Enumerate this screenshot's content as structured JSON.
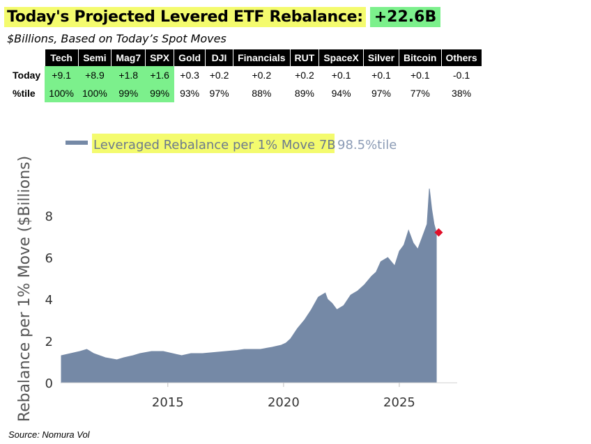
{
  "header": {
    "title": "Today's Projected Levered ETF Rebalance:",
    "total": "+22.6B",
    "subtitle": "$Billions, Based on Today’s Spot Moves"
  },
  "table": {
    "columns": [
      "Tech",
      "Semi",
      "Mag7",
      "SPX",
      "Gold",
      "DJI",
      "Financials",
      "RUT",
      "SpaceX",
      "Silver",
      "Bitcoin",
      "Others"
    ],
    "rows": [
      {
        "label": "Today",
        "values": [
          "+9.1",
          "+8.9",
          "+1.8",
          "+1.6",
          "+0.3",
          "+0.2",
          "+0.2",
          "+0.2",
          "+0.1",
          "+0.1",
          "+0.1",
          "-0.1"
        ]
      },
      {
        "label": "%tile",
        "values": [
          "100%",
          "100%",
          "99%",
          "99%",
          "93%",
          "97%",
          "88%",
          "89%",
          "94%",
          "97%",
          "77%",
          "38%"
        ]
      }
    ],
    "highlight_columns": 4,
    "highlight_color": "#7cf08c",
    "title_highlight_color": "#f4fb6e"
  },
  "chart_data": {
    "type": "area",
    "series": [
      {
        "name": "Leveraged Rebalance per 1% Move 7B",
        "name_suffix": "98.5%tile",
        "color": "#7589a6",
        "x": [
          2010.4,
          2010.8,
          2011.2,
          2011.5,
          2011.8,
          2012.3,
          2012.8,
          2013.1,
          2013.5,
          2013.8,
          2014.3,
          2014.8,
          2015.2,
          2015.6,
          2016.0,
          2016.5,
          2017.0,
          2017.5,
          2018.0,
          2018.3,
          2018.8,
          2019.0,
          2019.5,
          2019.9,
          2020.1,
          2020.3,
          2020.6,
          2020.9,
          2021.2,
          2021.5,
          2021.8,
          2021.9,
          2022.1,
          2022.3,
          2022.6,
          2022.9,
          2023.2,
          2023.5,
          2023.8,
          2024.0,
          2024.2,
          2024.5,
          2024.8,
          2025.0,
          2025.2,
          2025.4,
          2025.6,
          2025.8,
          2026.0,
          2026.2,
          2026.3,
          2026.4,
          2026.5,
          2026.6
        ],
        "values": [
          1.3,
          1.4,
          1.5,
          1.6,
          1.4,
          1.2,
          1.1,
          1.2,
          1.3,
          1.4,
          1.5,
          1.5,
          1.4,
          1.3,
          1.4,
          1.4,
          1.45,
          1.5,
          1.55,
          1.6,
          1.6,
          1.6,
          1.7,
          1.8,
          1.9,
          2.1,
          2.6,
          3.0,
          3.5,
          4.1,
          4.3,
          4.0,
          3.8,
          3.5,
          3.7,
          4.2,
          4.4,
          4.7,
          5.1,
          5.3,
          5.8,
          6.0,
          5.6,
          6.3,
          6.6,
          7.3,
          6.7,
          6.4,
          7.0,
          7.6,
          9.3,
          8.3,
          7.6,
          7.2
        ]
      }
    ],
    "marker": {
      "x": 2026.7,
      "y": 7.2,
      "color": "#e0102a"
    },
    "xlim": [
      2010.4,
      2027.5
    ],
    "ylim": [
      0,
      10
    ],
    "xticks": [
      2015,
      2020,
      2025
    ],
    "yticks": [
      0,
      2,
      4,
      6,
      8
    ],
    "ylabel": "Rebalance per 1% Move ($Billions)",
    "xlabel": "",
    "grid": false,
    "legend": "top-left"
  },
  "footer": {
    "source": "Source: Nomura Vol"
  }
}
